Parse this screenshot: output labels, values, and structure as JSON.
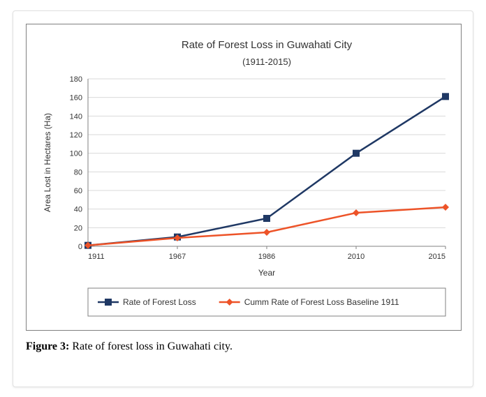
{
  "chart": {
    "type": "line",
    "title": "Rate of Forest Loss in Guwahati City",
    "subtitle": "(1911-2015)",
    "title_fontsize": 15,
    "subtitle_fontsize": 13,
    "title_color": "#333333",
    "xlabel": "Year",
    "ylabel": "Area Lost in Hectares (Ha)",
    "label_fontsize": 12,
    "categories": [
      "1911",
      "1967",
      "1986",
      "2010",
      "2015"
    ],
    "ylim": [
      0,
      180
    ],
    "ytick_step": 20,
    "yticks": [
      0,
      20,
      40,
      60,
      80,
      100,
      120,
      140,
      160,
      180
    ],
    "grid_color": "#d9d9d9",
    "axis_color": "#808080",
    "background_color": "#ffffff",
    "line_width": 2.5,
    "marker_size": 10,
    "series": [
      {
        "name": "Rate of Forest Loss",
        "color": "#1f3864",
        "marker": "square",
        "values": [
          1,
          10,
          30,
          100,
          161
        ]
      },
      {
        "name": "Cumm Rate of Forest  Loss Baseline 1911",
        "color": "#ed5328",
        "marker": "diamond",
        "values": [
          1,
          9,
          15,
          36,
          42
        ]
      }
    ],
    "legend_fontsize": 12
  },
  "caption": {
    "label": "Figure 3:",
    "text": "Rate of forest loss in Guwahati city."
  }
}
